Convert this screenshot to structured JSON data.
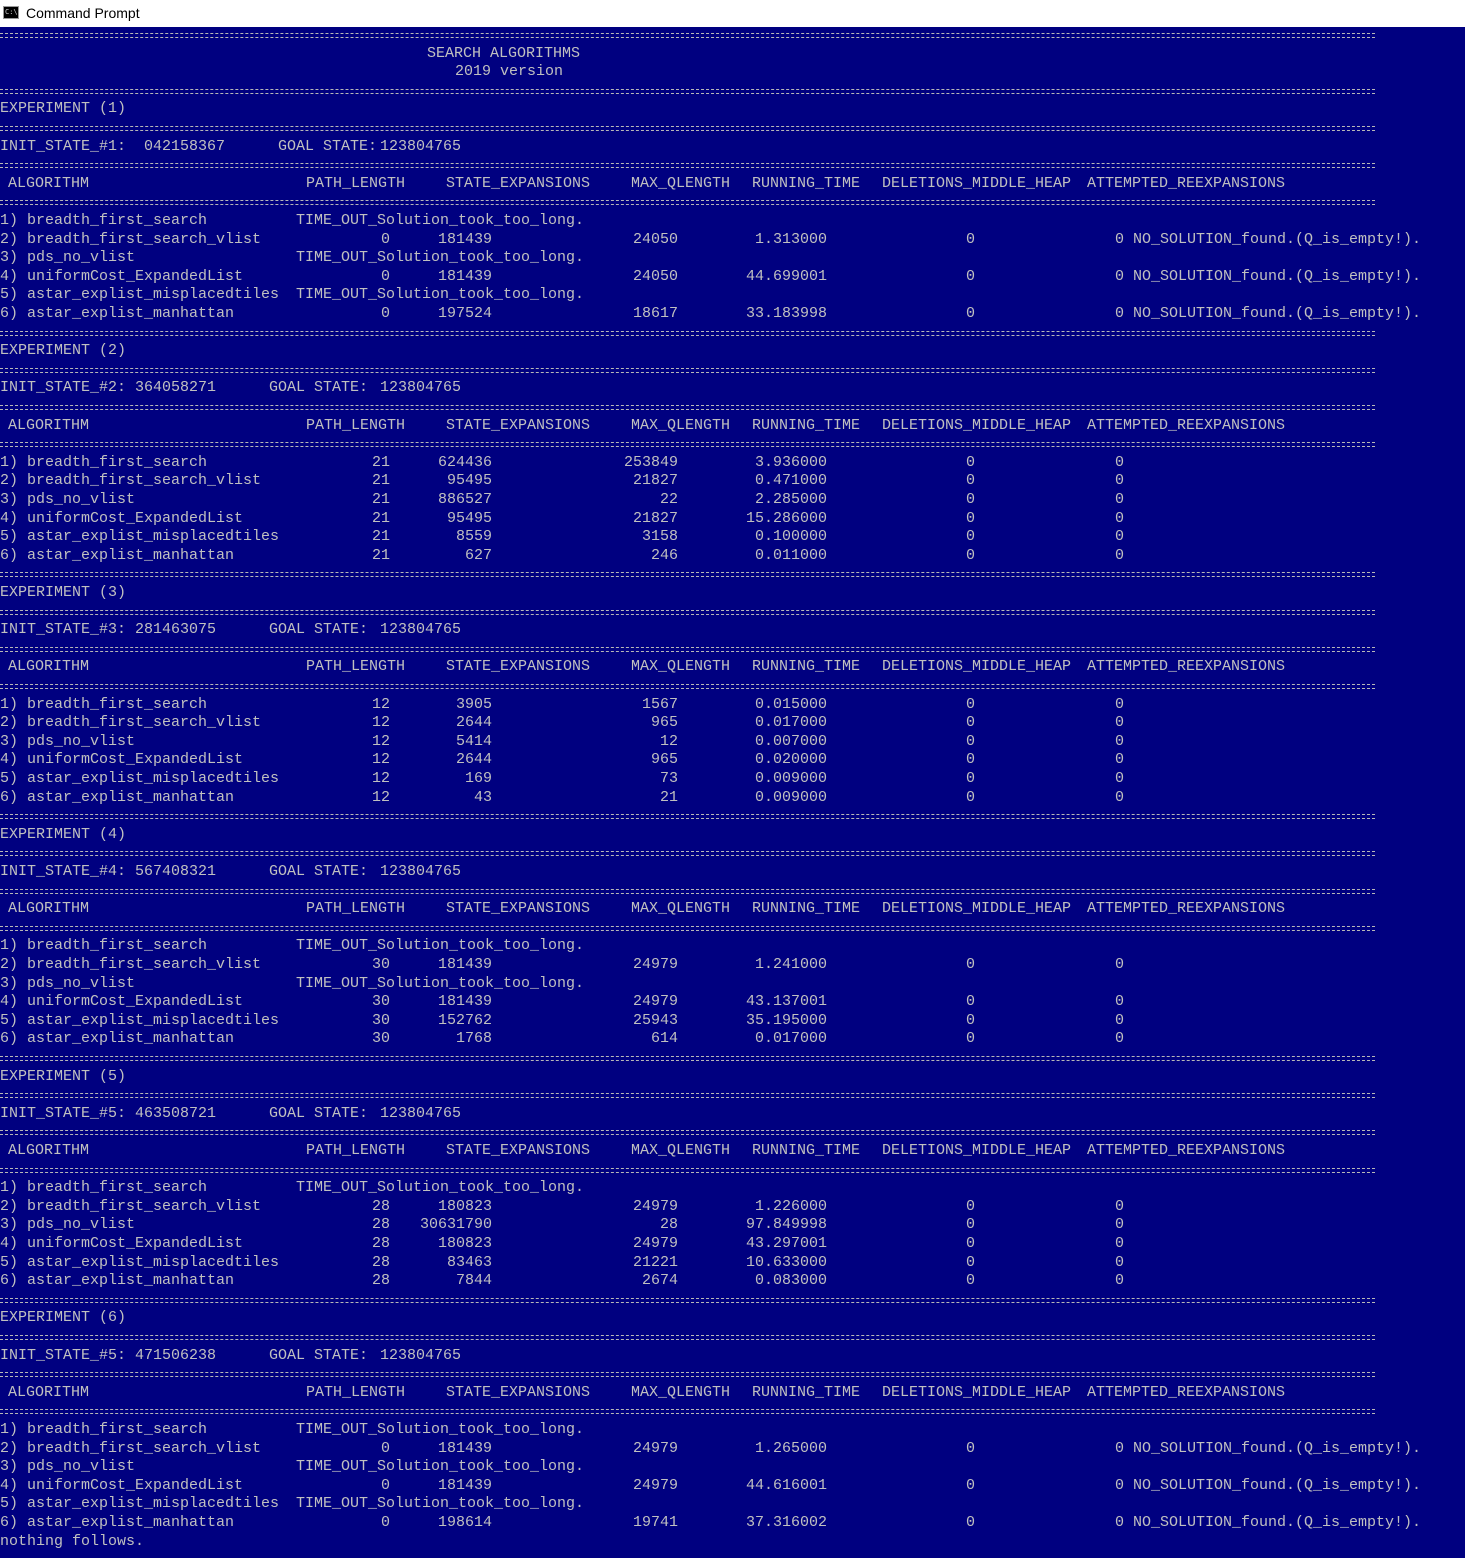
{
  "window": {
    "title": "Command Prompt",
    "icon": "cmd-icon"
  },
  "colors": {
    "background": "#000080",
    "text": "#c0c0c0"
  },
  "header": {
    "title": "SEARCH ALGORITHMS",
    "version": "2019 version"
  },
  "columns": [
    "ALGORITHM",
    "PATH_LENGTH",
    "STATE_EXPANSIONS",
    "MAX_QLENGTH",
    "RUNNING_TIME",
    "DELETIONS_MIDDLE_HEAP",
    "ATTEMPTED_REEXPANSIONS"
  ],
  "goal_label": "GOAL STATE:",
  "experiments": [
    {
      "label": "EXPERIMENT (1)",
      "init": "INIT_STATE_#1:  042158367",
      "goal": "123804765",
      "rows": [
        {
          "name": "1) breadth_first_search",
          "timeout": "TIME_OUT_Solution_took_too_long."
        },
        {
          "name": "2) breadth_first_search_vlist",
          "path": "0",
          "exp": "181439",
          "maxq": "24050",
          "time": "1.313000",
          "del": "0",
          "re": "0",
          "note": "NO_SOLUTION_found.(Q_is_empty!)."
        },
        {
          "name": "3) pds_no_vlist",
          "timeout": "TIME_OUT_Solution_took_too_long."
        },
        {
          "name": "4) uniformCost_ExpandedList",
          "path": "0",
          "exp": "181439",
          "maxq": "24050",
          "time": "44.699001",
          "del": "0",
          "re": "0",
          "note": "NO_SOLUTION_found.(Q_is_empty!)."
        },
        {
          "name": "5) astar_explist_misplacedtiles",
          "timeout": "TIME_OUT_Solution_took_too_long."
        },
        {
          "name": "6) astar_explist_manhattan",
          "path": "0",
          "exp": "197524",
          "maxq": "18617",
          "time": "33.183998",
          "del": "0",
          "re": "0",
          "note": "NO_SOLUTION_found.(Q_is_empty!)."
        }
      ]
    },
    {
      "label": "EXPERIMENT (2)",
      "init": "INIT_STATE_#2: 364058271",
      "goal": "123804765",
      "rows": [
        {
          "name": "1) breadth_first_search",
          "path": "21",
          "exp": "624436",
          "maxq": "253849",
          "time": "3.936000",
          "del": "0",
          "re": "0"
        },
        {
          "name": "2) breadth_first_search_vlist",
          "path": "21",
          "exp": "95495",
          "maxq": "21827",
          "time": "0.471000",
          "del": "0",
          "re": "0"
        },
        {
          "name": "3) pds_no_vlist",
          "path": "21",
          "exp": "886527",
          "maxq": "22",
          "time": "2.285000",
          "del": "0",
          "re": "0"
        },
        {
          "name": "4) uniformCost_ExpandedList",
          "path": "21",
          "exp": "95495",
          "maxq": "21827",
          "time": "15.286000",
          "del": "0",
          "re": "0"
        },
        {
          "name": "5) astar_explist_misplacedtiles",
          "path": "21",
          "exp": "8559",
          "maxq": "3158",
          "time": "0.100000",
          "del": "0",
          "re": "0"
        },
        {
          "name": "6) astar_explist_manhattan",
          "path": "21",
          "exp": "627",
          "maxq": "246",
          "time": "0.011000",
          "del": "0",
          "re": "0"
        }
      ]
    },
    {
      "label": "EXPERIMENT (3)",
      "init": "INIT_STATE_#3: 281463075",
      "goal": "123804765",
      "rows": [
        {
          "name": "1) breadth_first_search",
          "path": "12",
          "exp": "3905",
          "maxq": "1567",
          "time": "0.015000",
          "del": "0",
          "re": "0"
        },
        {
          "name": "2) breadth_first_search_vlist",
          "path": "12",
          "exp": "2644",
          "maxq": "965",
          "time": "0.017000",
          "del": "0",
          "re": "0"
        },
        {
          "name": "3) pds_no_vlist",
          "path": "12",
          "exp": "5414",
          "maxq": "12",
          "time": "0.007000",
          "del": "0",
          "re": "0"
        },
        {
          "name": "4) uniformCost_ExpandedList",
          "path": "12",
          "exp": "2644",
          "maxq": "965",
          "time": "0.020000",
          "del": "0",
          "re": "0"
        },
        {
          "name": "5) astar_explist_misplacedtiles",
          "path": "12",
          "exp": "169",
          "maxq": "73",
          "time": "0.009000",
          "del": "0",
          "re": "0"
        },
        {
          "name": "6) astar_explist_manhattan",
          "path": "12",
          "exp": "43",
          "maxq": "21",
          "time": "0.009000",
          "del": "0",
          "re": "0"
        }
      ]
    },
    {
      "label": "EXPERIMENT (4)",
      "init": "INIT_STATE_#4: 567408321",
      "goal": "123804765",
      "rows": [
        {
          "name": "1) breadth_first_search",
          "timeout": "TIME_OUT_Solution_took_too_long."
        },
        {
          "name": "2) breadth_first_search_vlist",
          "path": "30",
          "exp": "181439",
          "maxq": "24979",
          "time": "1.241000",
          "del": "0",
          "re": "0"
        },
        {
          "name": "3) pds_no_vlist",
          "timeout": "TIME_OUT_Solution_took_too_long."
        },
        {
          "name": "4) uniformCost_ExpandedList",
          "path": "30",
          "exp": "181439",
          "maxq": "24979",
          "time": "43.137001",
          "del": "0",
          "re": "0"
        },
        {
          "name": "5) astar_explist_misplacedtiles",
          "path": "30",
          "exp": "152762",
          "maxq": "25943",
          "time": "35.195000",
          "del": "0",
          "re": "0"
        },
        {
          "name": "6) astar_explist_manhattan",
          "path": "30",
          "exp": "1768",
          "maxq": "614",
          "time": "0.017000",
          "del": "0",
          "re": "0"
        }
      ]
    },
    {
      "label": "EXPERIMENT (5)",
      "init": "INIT_STATE_#5: 463508721",
      "goal": "123804765",
      "rows": [
        {
          "name": "1) breadth_first_search",
          "timeout": "TIME_OUT_Solution_took_too_long."
        },
        {
          "name": "2) breadth_first_search_vlist",
          "path": "28",
          "exp": "180823",
          "maxq": "24979",
          "time": "1.226000",
          "del": "0",
          "re": "0"
        },
        {
          "name": "3) pds_no_vlist",
          "path": "28",
          "exp": "30631790",
          "maxq": "28",
          "time": "97.849998",
          "del": "0",
          "re": "0"
        },
        {
          "name": "4) uniformCost_ExpandedList",
          "path": "28",
          "exp": "180823",
          "maxq": "24979",
          "time": "43.297001",
          "del": "0",
          "re": "0"
        },
        {
          "name": "5) astar_explist_misplacedtiles",
          "path": "28",
          "exp": "83463",
          "maxq": "21221",
          "time": "10.633000",
          "del": "0",
          "re": "0"
        },
        {
          "name": "6) astar_explist_manhattan",
          "path": "28",
          "exp": "7844",
          "maxq": "2674",
          "time": "0.083000",
          "del": "0",
          "re": "0"
        }
      ]
    },
    {
      "label": "EXPERIMENT (6)",
      "init": "INIT_STATE_#5: 471506238",
      "goal": "123804765",
      "rows": [
        {
          "name": "1) breadth_first_search",
          "timeout": "TIME_OUT_Solution_took_too_long."
        },
        {
          "name": "2) breadth_first_search_vlist",
          "path": "0",
          "exp": "181439",
          "maxq": "24979",
          "time": "1.265000",
          "del": "0",
          "re": "0",
          "note": "NO_SOLUTION_found.(Q_is_empty!)."
        },
        {
          "name": "3) pds_no_vlist",
          "timeout": "TIME_OUT_Solution_took_too_long."
        },
        {
          "name": "4) uniformCost_ExpandedList",
          "path": "0",
          "exp": "181439",
          "maxq": "24979",
          "time": "44.616001",
          "del": "0",
          "re": "0",
          "note": "NO_SOLUTION_found.(Q_is_empty!)."
        },
        {
          "name": "5) astar_explist_misplacedtiles",
          "timeout": "TIME_OUT_Solution_took_too_long."
        },
        {
          "name": "6) astar_explist_manhattan",
          "path": "0",
          "exp": "198614",
          "maxq": "19741",
          "time": "37.316002",
          "del": "0",
          "re": "0",
          "note": "NO_SOLUTION_found.(Q_is_empty!)."
        }
      ]
    }
  ],
  "footer": "nothing follows."
}
